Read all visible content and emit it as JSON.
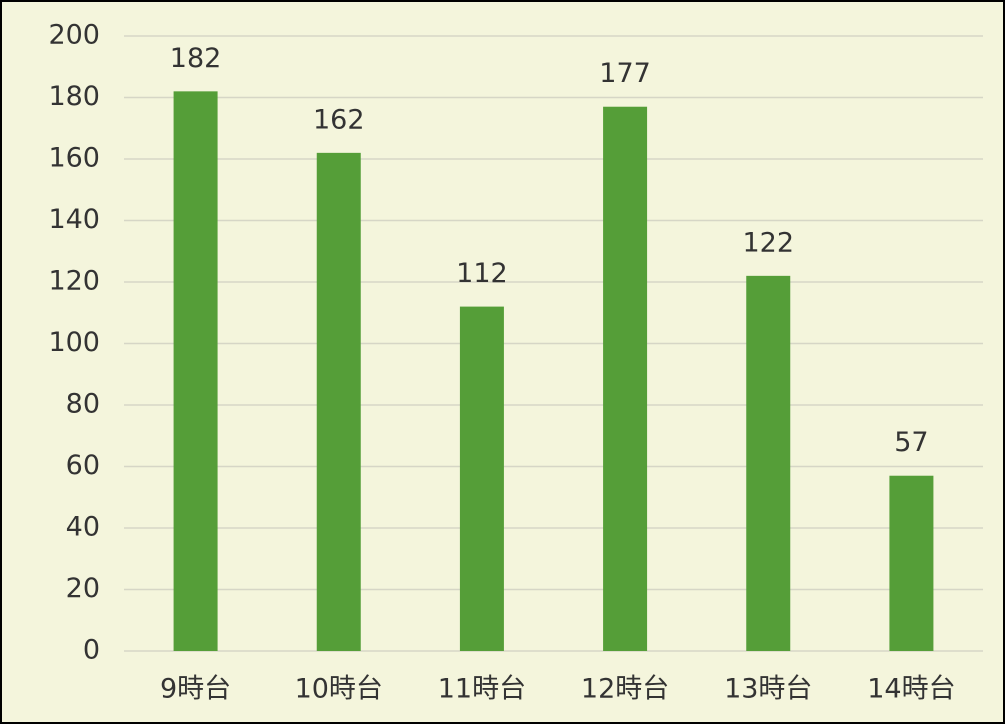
{
  "chart_data": {
    "type": "bar",
    "categories": [
      "9時台",
      "10時台",
      "11時台",
      "12時台",
      "13時台",
      "14時台"
    ],
    "values": [
      182,
      162,
      112,
      177,
      122,
      57
    ],
    "color": "#559e38",
    "ylim": [
      0,
      200
    ],
    "yticks": [
      0,
      20,
      40,
      60,
      80,
      100,
      120,
      140,
      160,
      180,
      200
    ],
    "grid": true,
    "data_labels": true
  }
}
